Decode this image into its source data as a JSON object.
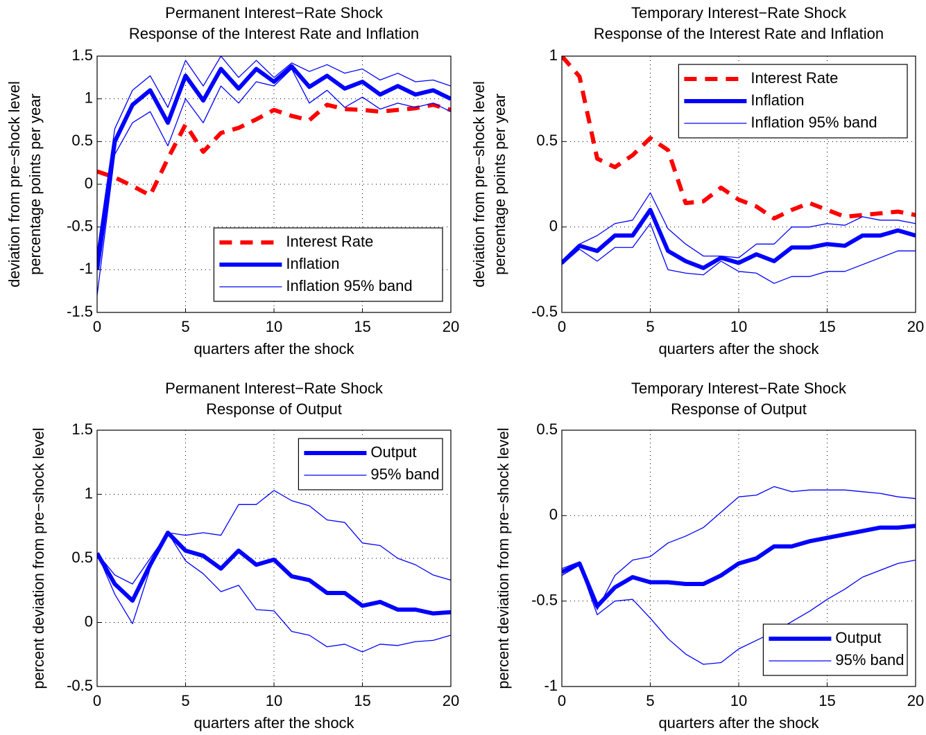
{
  "chart_data": [
    {
      "type": "line",
      "title": "Permanent Interest−Rate Shock",
      "subtitle": "Response of the Interest Rate and Inflation",
      "xlabel": "quarters after the shock",
      "ylabel": [
        "deviation from pre−shock level",
        "percentage points  per year"
      ],
      "x": [
        0,
        1,
        2,
        3,
        4,
        5,
        6,
        7,
        8,
        9,
        10,
        11,
        12,
        13,
        14,
        15,
        16,
        17,
        18,
        19,
        20
      ],
      "xlim": [
        0,
        20
      ],
      "xticks": [
        0,
        5,
        10,
        15,
        20
      ],
      "ylim": [
        -1.5,
        1.5
      ],
      "yticks": [
        -1.5,
        -1,
        -0.5,
        0,
        0.5,
        1,
        1.5
      ],
      "grid": true,
      "legend": "lower right",
      "series": [
        {
          "name": "Interest Rate",
          "color": "#ff0000",
          "dash": true,
          "width": 6,
          "values": [
            0.15,
            0.08,
            -0.02,
            -0.13,
            0.3,
            0.7,
            0.38,
            0.6,
            0.66,
            0.76,
            0.87,
            0.8,
            0.75,
            0.93,
            0.88,
            0.87,
            0.85,
            0.87,
            0.89,
            0.93,
            0.87
          ]
        },
        {
          "name": "Inflation",
          "color": "#0000ff",
          "dash": false,
          "width": 6,
          "values": [
            -1.0,
            0.5,
            0.93,
            1.1,
            0.72,
            1.27,
            0.98,
            1.35,
            1.12,
            1.35,
            1.2,
            1.38,
            1.14,
            1.27,
            1.12,
            1.2,
            1.05,
            1.15,
            1.05,
            1.1,
            1.0
          ]
        },
        {
          "name": "Inflation 95% band",
          "color": "#0000ff",
          "dash": false,
          "width": 1.3,
          "lower": [
            -1.3,
            0.35,
            0.72,
            0.85,
            0.45,
            1.0,
            0.72,
            1.15,
            0.95,
            1.2,
            1.15,
            1.35,
            0.95,
            1.1,
            0.9,
            1.02,
            0.88,
            0.95,
            0.9,
            0.95,
            0.85
          ],
          "upper": [
            -0.8,
            0.65,
            1.1,
            1.27,
            0.9,
            1.45,
            1.15,
            1.5,
            1.25,
            1.45,
            1.25,
            1.42,
            1.32,
            1.4,
            1.3,
            1.35,
            1.22,
            1.3,
            1.2,
            1.22,
            1.15
          ]
        }
      ]
    },
    {
      "type": "line",
      "title": "Temporary Interest−Rate Shock",
      "subtitle": "Response of the Interest Rate and Inflation",
      "xlabel": "quarters after the shock",
      "ylabel": [
        "deviation from pre−shock level",
        "percentage points  per year"
      ],
      "x": [
        0,
        1,
        2,
        3,
        4,
        5,
        6,
        7,
        8,
        9,
        10,
        11,
        12,
        13,
        14,
        15,
        16,
        17,
        18,
        19,
        20
      ],
      "xlim": [
        0,
        20
      ],
      "xticks": [
        0,
        5,
        10,
        15,
        20
      ],
      "ylim": [
        -0.5,
        1
      ],
      "yticks": [
        -0.5,
        0,
        0.5,
        1
      ],
      "grid": true,
      "legend": "upper right",
      "series": [
        {
          "name": "Interest Rate",
          "color": "#ff0000",
          "dash": true,
          "width": 6,
          "values": [
            1.0,
            0.88,
            0.4,
            0.35,
            0.42,
            0.52,
            0.45,
            0.14,
            0.15,
            0.23,
            0.16,
            0.12,
            0.05,
            0.1,
            0.14,
            0.1,
            0.06,
            0.07,
            0.08,
            0.09,
            0.07
          ]
        },
        {
          "name": "Inflation",
          "color": "#0000ff",
          "dash": false,
          "width": 6,
          "values": [
            -0.21,
            -0.11,
            -0.14,
            -0.05,
            -0.05,
            0.1,
            -0.14,
            -0.2,
            -0.24,
            -0.18,
            -0.21,
            -0.16,
            -0.2,
            -0.12,
            -0.12,
            -0.1,
            -0.11,
            -0.05,
            -0.05,
            -0.02,
            -0.05
          ]
        },
        {
          "name": "Inflation 95% band",
          "color": "#0000ff",
          "dash": false,
          "width": 1.3,
          "lower": [
            -0.22,
            -0.13,
            -0.2,
            -0.12,
            -0.12,
            0.02,
            -0.25,
            -0.27,
            -0.28,
            -0.2,
            -0.26,
            -0.27,
            -0.33,
            -0.29,
            -0.29,
            -0.26,
            -0.26,
            -0.22,
            -0.18,
            -0.14,
            -0.14
          ],
          "upper": [
            -0.2,
            -0.1,
            -0.05,
            0.02,
            0.04,
            0.2,
            -0.01,
            -0.1,
            -0.17,
            -0.17,
            -0.18,
            -0.1,
            -0.1,
            0.0,
            0.0,
            0.02,
            0.01,
            0.06,
            0.04,
            0.04,
            0.02
          ]
        }
      ]
    },
    {
      "type": "line",
      "title": "Permanent Interest−Rate Shock",
      "subtitle": "Response of Output",
      "xlabel": "quarters after the shock",
      "ylabel": [
        "percent deviation from pre−shock level"
      ],
      "x": [
        0,
        1,
        2,
        3,
        4,
        5,
        6,
        7,
        8,
        9,
        10,
        11,
        12,
        13,
        14,
        15,
        16,
        17,
        18,
        19,
        20
      ],
      "xlim": [
        0,
        20
      ],
      "xticks": [
        0,
        5,
        10,
        15,
        20
      ],
      "ylim": [
        -0.5,
        1.5
      ],
      "yticks": [
        -0.5,
        0,
        0.5,
        1,
        1.5
      ],
      "grid": true,
      "legend": "upper right",
      "series": [
        {
          "name": "Output",
          "color": "#0000ff",
          "dash": false,
          "width": 6,
          "values": [
            0.54,
            0.3,
            0.17,
            0.45,
            0.7,
            0.56,
            0.52,
            0.42,
            0.56,
            0.45,
            0.49,
            0.36,
            0.33,
            0.23,
            0.23,
            0.13,
            0.16,
            0.1,
            0.1,
            0.07,
            0.08
          ]
        },
        {
          "name": "95% band",
          "color": "#0000ff",
          "dash": false,
          "width": 1.3,
          "lower": [
            0.54,
            0.22,
            -0.01,
            0.42,
            0.7,
            0.48,
            0.38,
            0.24,
            0.29,
            0.1,
            0.09,
            -0.07,
            -0.1,
            -0.19,
            -0.17,
            -0.23,
            -0.17,
            -0.18,
            -0.15,
            -0.14,
            -0.1
          ],
          "upper": [
            0.54,
            0.37,
            0.3,
            0.5,
            0.7,
            0.68,
            0.7,
            0.68,
            0.92,
            0.92,
            1.03,
            0.95,
            0.91,
            0.8,
            0.78,
            0.62,
            0.6,
            0.5,
            0.45,
            0.37,
            0.33
          ]
        }
      ]
    },
    {
      "type": "line",
      "title": "Temporary Interest−Rate Shock",
      "subtitle": "Response of Output",
      "xlabel": "quarters after the shock",
      "ylabel": [
        "percent deviation from pre−shock level"
      ],
      "x": [
        0,
        1,
        2,
        3,
        4,
        5,
        6,
        7,
        8,
        9,
        10,
        11,
        12,
        13,
        14,
        15,
        16,
        17,
        18,
        19,
        20
      ],
      "xlim": [
        0,
        20
      ],
      "xticks": [
        0,
        5,
        10,
        15,
        20
      ],
      "ylim": [
        -1,
        0.5
      ],
      "yticks": [
        -1,
        -0.5,
        0,
        0.5
      ],
      "grid": true,
      "legend": "lower right",
      "series": [
        {
          "name": "Output",
          "color": "#0000ff",
          "dash": false,
          "width": 6,
          "values": [
            -0.33,
            -0.28,
            -0.53,
            -0.42,
            -0.36,
            -0.39,
            -0.39,
            -0.4,
            -0.4,
            -0.35,
            -0.28,
            -0.25,
            -0.18,
            -0.18,
            -0.15,
            -0.13,
            -0.11,
            -0.09,
            -0.07,
            -0.07,
            -0.06
          ]
        },
        {
          "name": "95% band",
          "color": "#0000ff",
          "dash": false,
          "width": 1.3,
          "lower": [
            -0.35,
            -0.29,
            -0.58,
            -0.5,
            -0.49,
            -0.6,
            -0.72,
            -0.81,
            -0.87,
            -0.86,
            -0.78,
            -0.73,
            -0.68,
            -0.62,
            -0.56,
            -0.49,
            -0.43,
            -0.36,
            -0.32,
            -0.28,
            -0.26
          ],
          "upper": [
            -0.31,
            -0.27,
            -0.55,
            -0.35,
            -0.26,
            -0.24,
            -0.16,
            -0.12,
            -0.07,
            0.02,
            0.11,
            0.12,
            0.17,
            0.14,
            0.15,
            0.15,
            0.15,
            0.14,
            0.13,
            0.11,
            0.1
          ]
        }
      ]
    }
  ]
}
